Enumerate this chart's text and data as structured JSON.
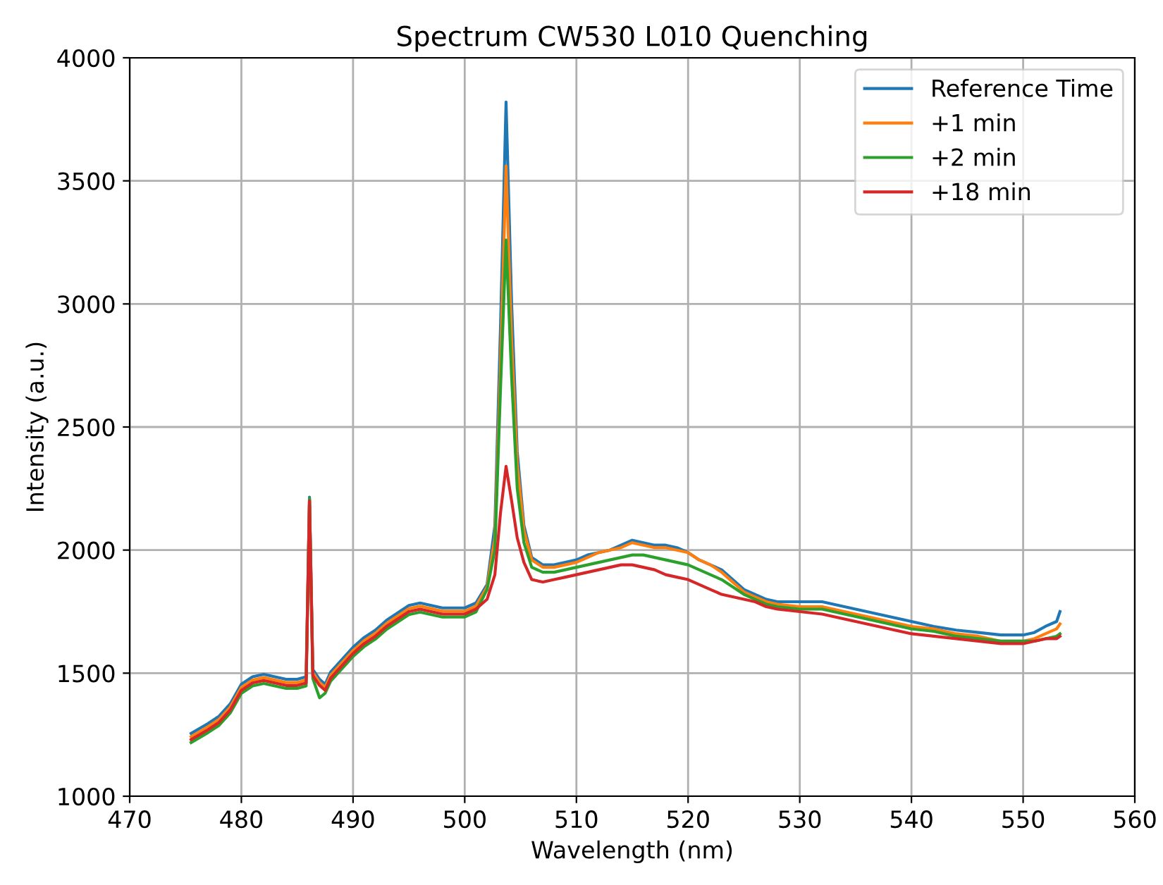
{
  "chart_data": {
    "type": "line",
    "title": "Spectrum CW530 L010 Quenching",
    "xlabel": "Wavelength (nm)",
    "ylabel": "Intensity (a.u.)",
    "x": [
      475.5,
      477,
      478,
      479,
      480,
      481,
      482,
      483,
      484,
      485,
      485.8,
      486.1,
      486.4,
      487,
      487.5,
      488,
      489,
      490,
      491,
      492,
      493,
      494,
      495,
      496,
      497,
      498,
      499,
      500,
      501,
      502,
      502.7,
      503.2,
      503.7,
      504.2,
      504.7,
      505.3,
      506,
      507,
      508,
      509,
      510,
      511,
      512,
      513,
      514,
      515,
      516,
      517,
      518,
      519,
      520,
      521,
      522,
      523,
      524,
      525,
      526,
      527,
      528,
      530,
      532,
      534,
      536,
      538,
      540,
      542,
      544,
      546,
      548,
      550,
      551,
      552,
      553,
      553.3
    ],
    "series": [
      {
        "name": "Reference Time",
        "color": "#1f77b4",
        "values": [
          1255,
          1295,
          1325,
          1375,
          1455,
          1485,
          1495,
          1485,
          1475,
          1475,
          1485,
          2215,
          1515,
          1475,
          1455,
          1505,
          1555,
          1605,
          1645,
          1675,
          1715,
          1745,
          1775,
          1785,
          1775,
          1765,
          1765,
          1765,
          1785,
          1860,
          2100,
          2900,
          3820,
          3000,
          2400,
          2100,
          1970,
          1940,
          1940,
          1950,
          1960,
          1980,
          1990,
          2000,
          2020,
          2040,
          2030,
          2020,
          2020,
          2010,
          1990,
          1960,
          1940,
          1920,
          1880,
          1840,
          1820,
          1800,
          1790,
          1790,
          1790,
          1770,
          1750,
          1730,
          1710,
          1690,
          1675,
          1665,
          1655,
          1655,
          1665,
          1690,
          1710,
          1750
        ]
      },
      {
        "name": "+1 min",
        "color": "#ff7f0e",
        "values": [
          1242,
          1282,
          1312,
          1362,
          1442,
          1472,
          1482,
          1472,
          1462,
          1462,
          1472,
          2205,
          1502,
          1462,
          1442,
          1492,
          1542,
          1592,
          1632,
          1662,
          1702,
          1732,
          1762,
          1772,
          1762,
          1752,
          1752,
          1752,
          1772,
          1850,
          2050,
          2750,
          3560,
          2850,
          2350,
          2080,
          1960,
          1930,
          1930,
          1940,
          1950,
          1970,
          1990,
          2000,
          2010,
          2030,
          2020,
          2010,
          2010,
          2000,
          1990,
          1960,
          1940,
          1910,
          1870,
          1830,
          1810,
          1790,
          1780,
          1770,
          1770,
          1750,
          1730,
          1710,
          1690,
          1680,
          1660,
          1650,
          1630,
          1630,
          1640,
          1660,
          1680,
          1700
        ]
      },
      {
        "name": "+2 min",
        "color": "#2ca02c",
        "values": [
          1218,
          1258,
          1288,
          1338,
          1418,
          1448,
          1458,
          1448,
          1438,
          1438,
          1448,
          2210,
          1478,
          1400,
          1418,
          1468,
          1518,
          1568,
          1608,
          1638,
          1678,
          1708,
          1738,
          1748,
          1738,
          1728,
          1728,
          1728,
          1748,
          1840,
          2000,
          2650,
          3260,
          2700,
          2250,
          2030,
          1930,
          1910,
          1910,
          1920,
          1930,
          1940,
          1950,
          1960,
          1970,
          1980,
          1980,
          1970,
          1960,
          1950,
          1940,
          1920,
          1900,
          1880,
          1850,
          1820,
          1800,
          1780,
          1770,
          1760,
          1760,
          1740,
          1720,
          1700,
          1680,
          1670,
          1650,
          1640,
          1630,
          1630,
          1630,
          1640,
          1650,
          1660
        ]
      },
      {
        "name": "+18 min",
        "color": "#d62728",
        "values": [
          1230,
          1270,
          1300,
          1350,
          1430,
          1460,
          1470,
          1460,
          1450,
          1450,
          1460,
          2200,
          1490,
          1450,
          1430,
          1480,
          1530,
          1580,
          1620,
          1650,
          1690,
          1720,
          1750,
          1760,
          1750,
          1740,
          1740,
          1740,
          1760,
          1800,
          1900,
          2150,
          2340,
          2200,
          2050,
          1950,
          1880,
          1870,
          1880,
          1890,
          1900,
          1910,
          1920,
          1930,
          1940,
          1940,
          1930,
          1920,
          1900,
          1890,
          1880,
          1860,
          1840,
          1820,
          1810,
          1800,
          1790,
          1770,
          1760,
          1750,
          1740,
          1720,
          1700,
          1680,
          1660,
          1650,
          1640,
          1630,
          1620,
          1620,
          1630,
          1640,
          1640,
          1650
        ]
      }
    ],
    "xlim": [
      470,
      560
    ],
    "xticks": [
      470,
      480,
      490,
      500,
      510,
      520,
      530,
      540,
      550,
      560
    ],
    "ylim": [
      1000,
      4000
    ],
    "yticks": [
      1000,
      1500,
      2000,
      2500,
      3000,
      3500,
      4000
    ],
    "grid": true,
    "legend": "top right"
  }
}
